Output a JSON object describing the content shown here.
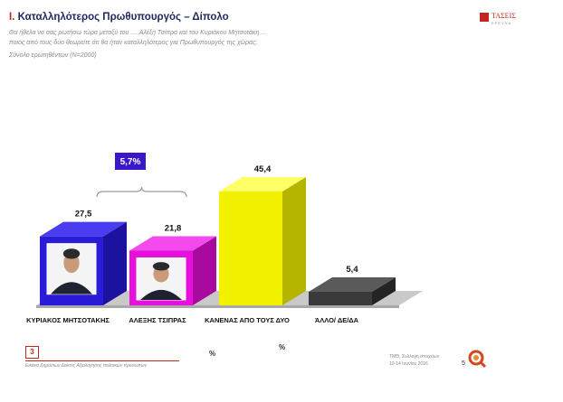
{
  "header": {
    "section_number": "I.",
    "title": "Καταλληλότερος Πρωθυπουργός – Δίπολο",
    "question_line1": "Θα ήθελα να σας ρωτήσω τώρα μεταξύ του .... Αλέξη Τσίπρα και του Κυριάκου Μητσοτάκη ...",
    "question_line2": "ποιος από τους δύο θεωρείτε ότι θα ήταν καταλληλότερος για Πρωθυπουργός της χώρας;",
    "sample": "Σύνολο ερωτηθέντων (N=2000)"
  },
  "logo": {
    "name": "ΤΑΣΕΙΣ",
    "sub": "ΕΡΕΥΝΑ",
    "icon": "red-square-logo-icon"
  },
  "chart_data": {
    "type": "bar",
    "style": "3d",
    "categories": [
      "ΚΥΡΙΑΚΟΣ ΜΗΤΣΟΤΑΚΗΣ",
      "ΑΛΕΞΗΣ ΤΣΙΠΡΑΣ",
      "ΚΑΝΕΝΑΣ ΑΠΟ ΤΟΥΣ ΔΥΟ",
      "ΆΛΛΟ/ ΔΕ/ΔΑ"
    ],
    "values": [
      27.5,
      21.8,
      45.4,
      5.4
    ],
    "value_labels": [
      "27,5",
      "21,8",
      "45,4",
      "5,4"
    ],
    "colors": [
      "#2a1bd6",
      "#e60fdc",
      "#f2f200",
      "#3a3a3a"
    ],
    "side_colors": [
      "#1c12a0",
      "#a80aa0",
      "#b5b500",
      "#242424"
    ],
    "top_colors": [
      "#4a3cf0",
      "#f24aec",
      "#ffff66",
      "#5a5a5a"
    ],
    "photo_icons": [
      "portrait-photo-icon",
      "portrait-photo-icon",
      null,
      null
    ],
    "difference_annotation": {
      "label": "5,7%",
      "between": [
        0,
        1
      ],
      "color": "#3a18c9"
    },
    "ylim": [
      0,
      50
    ],
    "grid": false,
    "legend": "none"
  },
  "footer": {
    "page_box": "3",
    "source": "Εικόνα Δημόσιων Δείκτες Αξιολόγησης πολιτικών προσώπων",
    "pct_symbol_1": "%",
    "pct_symbol_2": "%",
    "meta_line1": "ΤΜΘ, Συλλογή στοιχείων",
    "meta_line2": "10-14 Ιουνίου 2016",
    "page_number": "5",
    "icon": "magnifier-logo-icon"
  }
}
